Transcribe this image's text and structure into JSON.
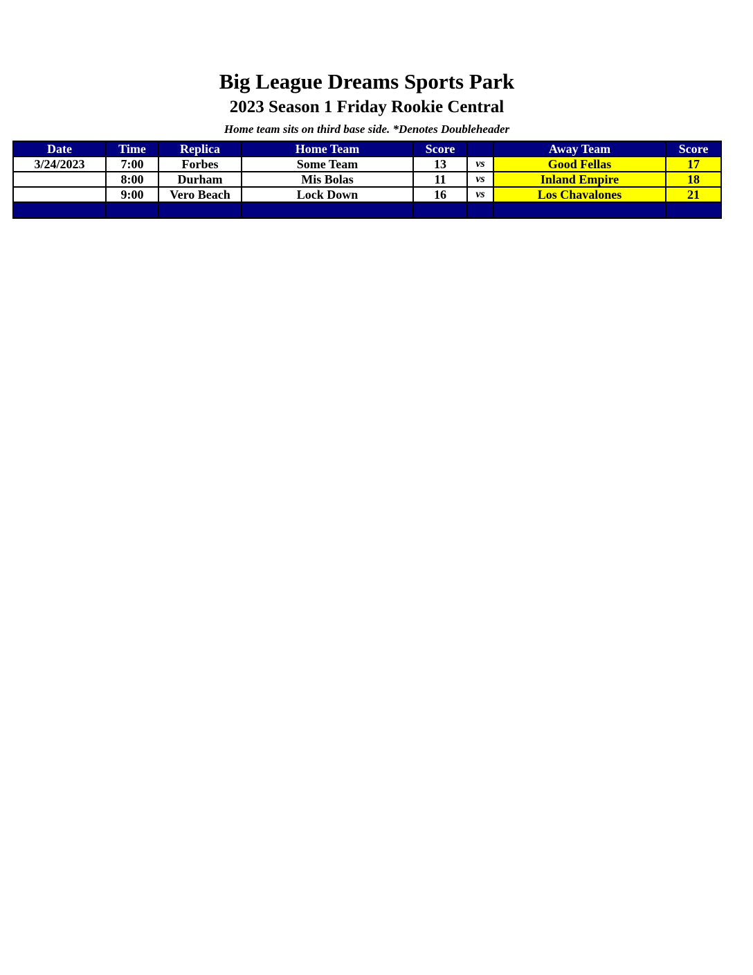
{
  "header": {
    "title": "Big League Dreams Sports Park",
    "subtitle": "2023 Season 1 Friday Rookie Central",
    "note": "Home team sits on third base side.  *Denotes Doubleheader"
  },
  "table": {
    "columns": [
      "Date",
      "Time",
      "Replica",
      "Home Team",
      "Score",
      "",
      "Away Team",
      "Score"
    ],
    "rows": [
      {
        "date": "3/24/2023",
        "time": "7:00",
        "replica": "Forbes",
        "home": "Some Team",
        "home_score": "13",
        "vs": "vs",
        "away": "Good Fellas",
        "away_score": "17"
      },
      {
        "date": "",
        "time": "8:00",
        "replica": "Durham",
        "home": "Mis Bolas",
        "home_score": "11",
        "vs": "vs",
        "away": "Inland Empire",
        "away_score": "18"
      },
      {
        "date": "",
        "time": "9:00",
        "replica": "Vero Beach",
        "home": "Lock Down",
        "home_score": "16",
        "vs": "vs",
        "away": "Los Chavalones",
        "away_score": "21"
      }
    ]
  },
  "colors": {
    "header_bg": "#000080",
    "away_highlight": "#ffff00"
  }
}
